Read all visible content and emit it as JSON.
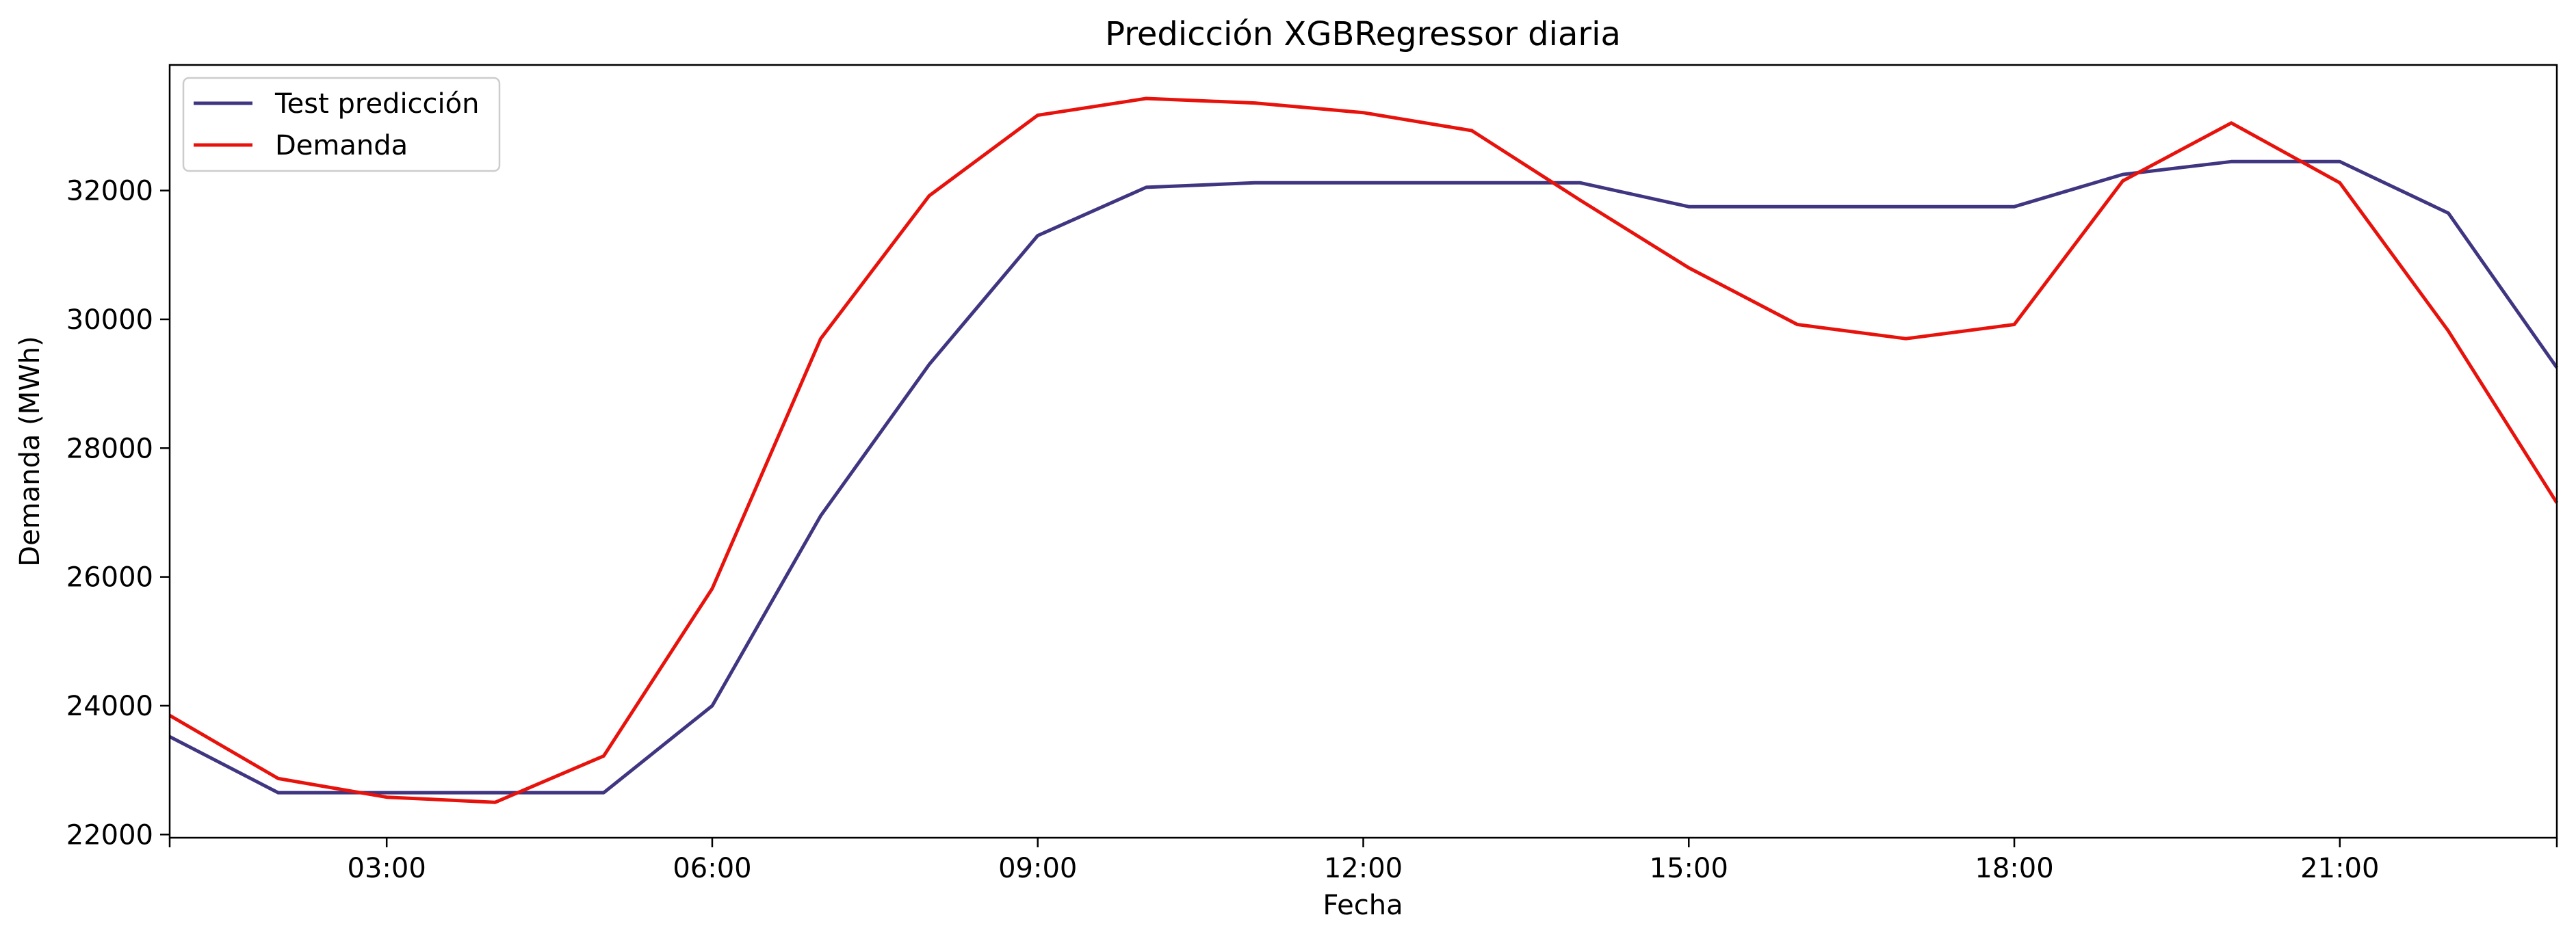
{
  "chart_data": {
    "type": "line",
    "title": "Predicción XGBRegressor diaria",
    "xlabel": "Fecha",
    "ylabel": "Demanda (MWh)",
    "x": [
      1,
      2,
      3,
      4,
      5,
      6,
      7,
      8,
      9,
      10,
      11,
      12,
      13,
      14,
      15,
      16,
      17,
      18,
      19,
      20,
      21,
      22,
      23
    ],
    "xlim": [
      1,
      23
    ],
    "ylim": [
      21950,
      33950
    ],
    "xticks": [
      3,
      6,
      9,
      12,
      15,
      18,
      21
    ],
    "xtick_labels": [
      "03:00",
      "06:00",
      "09:00",
      "12:00",
      "15:00",
      "18:00",
      "21:00"
    ],
    "yticks": [
      22000,
      24000,
      26000,
      28000,
      30000,
      32000
    ],
    "ytick_labels": [
      "22000",
      "24000",
      "26000",
      "28000",
      "30000",
      "32000"
    ],
    "grid": false,
    "legend_position": "upper-left",
    "series": [
      {
        "name": "Test predicción",
        "color": "#3f3581",
        "values": [
          23520,
          22650,
          22650,
          22650,
          22650,
          24000,
          26950,
          29300,
          31300,
          32050,
          32120,
          32120,
          32120,
          32120,
          31750,
          31750,
          31750,
          31750,
          32250,
          32450,
          32450,
          31650,
          29250
        ]
      },
      {
        "name": "Demanda",
        "color": "#e8120c",
        "values": [
          23850,
          22870,
          22580,
          22500,
          23220,
          25820,
          29700,
          31920,
          33170,
          33430,
          33360,
          33210,
          32930,
          31850,
          30800,
          29920,
          29700,
          29920,
          32150,
          33050,
          32120,
          29820,
          27150
        ]
      }
    ]
  }
}
